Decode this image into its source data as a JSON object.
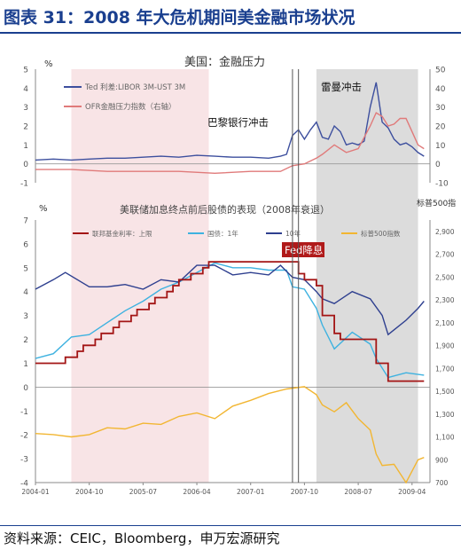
{
  "header": {
    "title": "图表 31：2008 年大危机期间美金融市场状况"
  },
  "footer": {
    "source": "资料来源：CEIC，Bloomberg，申万宏源研究"
  },
  "colors": {
    "ted": "#3d4f9e",
    "ofr": "#e07a7a",
    "fed_rate": "#a31515",
    "treasury_1y": "#3eb2e0",
    "treasury_10y": "#2e3f8f",
    "sp500": "#f2b632",
    "pink_band": "#f8e4e6",
    "gray_band": "#dcdcdc"
  },
  "chart_data": [
    {
      "type": "line",
      "title": "美国：金融压力",
      "ylabel_left": "%",
      "ylim_left": [
        -1,
        5
      ],
      "yticks_left": [
        -1,
        0,
        1,
        2,
        3,
        4,
        5
      ],
      "ylim_right": [
        -10,
        50
      ],
      "yticks_right": [
        -10,
        0,
        10,
        20,
        30,
        40,
        50
      ],
      "legend": "top-left",
      "grid": false,
      "annotations": [
        {
          "text": "巴黎银行冲击",
          "date": "2007-08"
        },
        {
          "text": "雷曼冲击",
          "date": "2008-09"
        }
      ],
      "series": [
        {
          "name": "Ted 利差:LIBOR 3M-UST 3M",
          "axis": "left",
          "x": [
            "2004-01",
            "2004-04",
            "2004-07",
            "2004-10",
            "2005-01",
            "2005-04",
            "2005-07",
            "2005-10",
            "2006-01",
            "2006-04",
            "2006-07",
            "2006-10",
            "2007-01",
            "2007-04",
            "2007-06",
            "2007-07",
            "2007-08",
            "2007-09",
            "2007-10",
            "2007-11",
            "2007-12",
            "2008-01",
            "2008-02",
            "2008-03",
            "2008-04",
            "2008-05",
            "2008-06",
            "2008-07",
            "2008-08",
            "2008-09",
            "2008-10",
            "2008-11",
            "2008-12",
            "2009-01",
            "2009-02",
            "2009-03",
            "2009-04",
            "2009-05",
            "2009-06"
          ],
          "values": [
            0.2,
            0.25,
            0.2,
            0.25,
            0.3,
            0.3,
            0.35,
            0.4,
            0.35,
            0.45,
            0.4,
            0.35,
            0.35,
            0.3,
            0.4,
            0.5,
            1.5,
            1.8,
            1.3,
            1.8,
            2.2,
            1.4,
            1.3,
            2.0,
            1.7,
            1.0,
            1.1,
            1.0,
            1.2,
            3.0,
            4.3,
            2.2,
            1.9,
            1.3,
            1.0,
            1.1,
            0.9,
            0.6,
            0.4
          ]
        },
        {
          "name": "OFR金融压力指数（右轴）",
          "axis": "right",
          "x": [
            "2004-01",
            "2004-07",
            "2005-01",
            "2005-07",
            "2006-01",
            "2006-07",
            "2007-01",
            "2007-06",
            "2007-08",
            "2007-10",
            "2007-12",
            "2008-01",
            "2008-03",
            "2008-05",
            "2008-07",
            "2008-09",
            "2008-10",
            "2008-11",
            "2008-12",
            "2009-01",
            "2009-02",
            "2009-03",
            "2009-04",
            "2009-05",
            "2009-06"
          ],
          "values": [
            -3,
            -3,
            -4,
            -4,
            -4,
            -5,
            -4,
            -4,
            -1,
            0,
            3,
            5,
            10,
            6,
            8,
            20,
            27,
            25,
            20,
            21,
            24,
            24,
            17,
            10,
            8
          ]
        }
      ]
    },
    {
      "type": "line",
      "title": "美联储加息终点前后股债的表现（2008年衰退）",
      "ylabel_left": "%",
      "ylabel_right": "标普500指",
      "ylim_left": [
        -4,
        7
      ],
      "yticks_left": [
        -4,
        -3,
        -2,
        -1,
        0,
        1,
        2,
        3,
        4,
        5,
        6,
        7
      ],
      "ylim_right": [
        700,
        3000
      ],
      "yticks_right": [
        700,
        900,
        1100,
        1300,
        1500,
        1700,
        1900,
        2100,
        2300,
        2500,
        2700,
        2900
      ],
      "x_ticks": [
        "2004-01",
        "2004-10",
        "2005-07",
        "2006-04",
        "2007-01",
        "2007-10",
        "2008-07",
        "2009-04"
      ],
      "legend": "top",
      "grid": false,
      "annotations": [
        {
          "text": "Fed降息",
          "date": "2007-09"
        }
      ],
      "series": [
        {
          "name": "联邦基金利率：上限",
          "axis": "left",
          "x": [
            "2004-01",
            "2004-06",
            "2004-08",
            "2004-09",
            "2004-11",
            "2004-12",
            "2005-02",
            "2005-03",
            "2005-05",
            "2005-06",
            "2005-08",
            "2005-09",
            "2005-11",
            "2005-12",
            "2006-01",
            "2006-03",
            "2006-05",
            "2006-06",
            "2007-09",
            "2007-10",
            "2007-12",
            "2008-01",
            "2008-03",
            "2008-04",
            "2008-10",
            "2008-12",
            "2009-06"
          ],
          "values": [
            1.0,
            1.25,
            1.5,
            1.75,
            2.0,
            2.25,
            2.5,
            2.75,
            3.0,
            3.25,
            3.5,
            3.75,
            4.0,
            4.25,
            4.5,
            4.75,
            5.0,
            5.25,
            4.75,
            4.5,
            4.25,
            3.0,
            2.25,
            2.0,
            1.0,
            0.25,
            0.25
          ]
        },
        {
          "name": "国债：1年",
          "axis": "left",
          "x": [
            "2004-01",
            "2004-04",
            "2004-07",
            "2004-10",
            "2005-01",
            "2005-04",
            "2005-07",
            "2005-10",
            "2006-01",
            "2006-04",
            "2006-07",
            "2006-10",
            "2007-01",
            "2007-04",
            "2007-07",
            "2007-08",
            "2007-10",
            "2007-12",
            "2008-01",
            "2008-03",
            "2008-06",
            "2008-09",
            "2008-10",
            "2008-12",
            "2009-03",
            "2009-06"
          ],
          "values": [
            1.2,
            1.4,
            2.1,
            2.2,
            2.7,
            3.2,
            3.6,
            4.1,
            4.4,
            4.8,
            5.2,
            5.0,
            5.0,
            4.9,
            4.9,
            4.2,
            4.1,
            3.3,
            2.6,
            1.6,
            2.3,
            1.8,
            1.2,
            0.4,
            0.6,
            0.5
          ]
        },
        {
          "name": "10年",
          "axis": "left",
          "x": [
            "2004-01",
            "2004-04",
            "2004-06",
            "2004-10",
            "2005-01",
            "2005-04",
            "2005-07",
            "2005-10",
            "2006-01",
            "2006-04",
            "2006-07",
            "2006-10",
            "2007-01",
            "2007-04",
            "2007-06",
            "2007-08",
            "2007-10",
            "2007-12",
            "2008-01",
            "2008-03",
            "2008-06",
            "2008-09",
            "2008-11",
            "2008-12",
            "2009-01",
            "2009-03",
            "2009-05",
            "2009-06"
          ],
          "values": [
            4.1,
            4.5,
            4.8,
            4.2,
            4.2,
            4.3,
            4.1,
            4.5,
            4.4,
            5.1,
            5.1,
            4.7,
            4.8,
            4.7,
            5.1,
            4.6,
            4.5,
            4.0,
            3.7,
            3.5,
            4.0,
            3.7,
            3.0,
            2.2,
            2.4,
            2.8,
            3.3,
            3.6
          ]
        },
        {
          "name": "标普500指数",
          "axis": "right",
          "x": [
            "2004-01",
            "2004-04",
            "2004-07",
            "2004-10",
            "2005-01",
            "2005-04",
            "2005-07",
            "2005-10",
            "2006-01",
            "2006-04",
            "2006-07",
            "2006-10",
            "2007-01",
            "2007-04",
            "2007-07",
            "2007-10",
            "2007-12",
            "2008-01",
            "2008-03",
            "2008-05",
            "2008-07",
            "2008-09",
            "2008-10",
            "2008-11",
            "2009-01",
            "2009-03",
            "2009-05",
            "2009-06"
          ],
          "values": [
            1130,
            1120,
            1100,
            1120,
            1180,
            1170,
            1220,
            1210,
            1280,
            1310,
            1260,
            1370,
            1420,
            1480,
            1520,
            1540,
            1470,
            1380,
            1320,
            1400,
            1260,
            1160,
            950,
            850,
            860,
            700,
            900,
            920
          ]
        }
      ]
    }
  ]
}
